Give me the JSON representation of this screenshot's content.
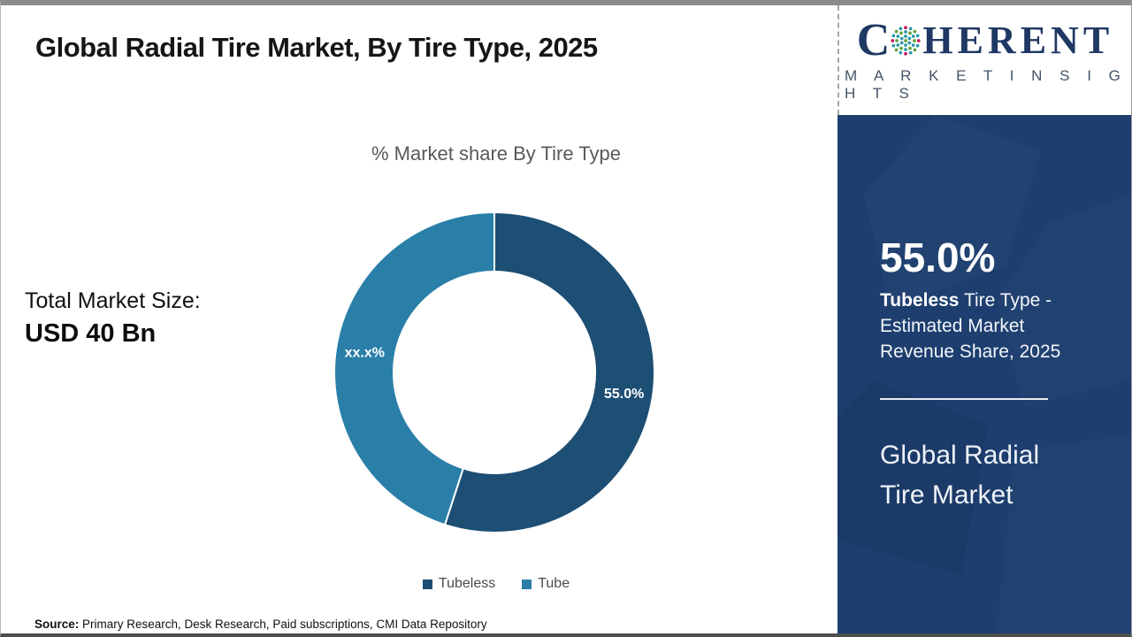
{
  "frame": {
    "title": "Global Radial Tire Market, By Tire Type, 2025"
  },
  "chart_data": {
    "type": "pie",
    "title": "% Market share By Tire Type",
    "categories": [
      "Tubeless",
      "Tube"
    ],
    "values": [
      55.0,
      45.0
    ],
    "slice_labels": [
      "55.0%",
      "xx.x%"
    ],
    "colors": [
      "#1d4e74",
      "#2a7fa9"
    ],
    "donut_hole_ratio": 0.63,
    "start_angle_deg": 0,
    "direction": "clockwise",
    "legend_position": "bottom"
  },
  "total_market": {
    "label": "Total Market Size:",
    "value": "USD 40 Bn"
  },
  "source": {
    "label": "Source:",
    "text": " Primary Research, Desk Research, Paid subscriptions, CMI Data Repository"
  },
  "sidebar": {
    "logo": {
      "letter_c": "C",
      "word_rest": "HERENT",
      "tagline": "M A R K E T  I N S I G H T S",
      "globe_colors": [
        "#62a23c",
        "#2d9ba9",
        "#c5195f"
      ]
    },
    "stat_value": "55.0%",
    "stat_label_bold": "Tubeless",
    "stat_label_rest": " Tire Type - Estimated Market Revenue Share, 2025",
    "market_name": "Global Radial Tire Market"
  },
  "colors": {
    "navy_panel": "#1d3e6e",
    "slice_dark": "#1d4e74",
    "slice_teal": "#2a7fa9",
    "logo_navy": "#1f3864",
    "tagline_gray": "#44546a",
    "subtitle_gray": "#595959"
  }
}
